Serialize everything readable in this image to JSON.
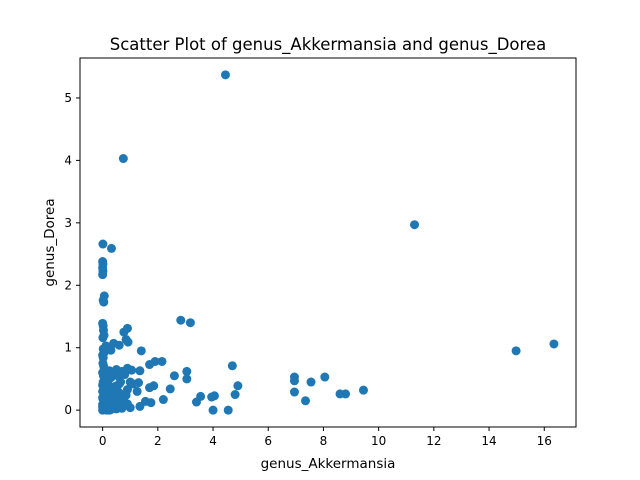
{
  "chart_data": {
    "type": "scatter",
    "title": "Scatter Plot of genus_Akkermansia and genus_Dorea",
    "xlabel": "genus_Akkermansia",
    "ylabel": "genus_Dorea",
    "xlim": [
      -0.82,
      17.15
    ],
    "ylim": [
      -0.27,
      5.64
    ],
    "xticks": [
      0,
      2,
      4,
      6,
      8,
      10,
      12,
      14,
      16
    ],
    "xtick_labels": [
      "0",
      "2",
      "4",
      "6",
      "8",
      "10",
      "12",
      "14",
      "16"
    ],
    "yticks": [
      0,
      1,
      2,
      3,
      4,
      5
    ],
    "ytick_labels": [
      "0",
      "1",
      "2",
      "3",
      "4",
      "5"
    ],
    "grid": false,
    "marker_color": "#1f77b4",
    "points": [
      [
        4.45,
        5.37
      ],
      [
        0.75,
        4.03
      ],
      [
        11.3,
        2.97
      ],
      [
        16.35,
        1.06
      ],
      [
        14.98,
        0.95
      ],
      [
        0.01,
        2.66
      ],
      [
        0.32,
        2.59
      ],
      [
        0.0,
        2.38
      ],
      [
        0.01,
        2.34
      ],
      [
        0.0,
        2.28
      ],
      [
        0.01,
        2.23
      ],
      [
        0.0,
        2.17
      ],
      [
        0.06,
        1.83
      ],
      [
        0.02,
        1.76
      ],
      [
        0.04,
        1.73
      ],
      [
        2.83,
        1.44
      ],
      [
        3.18,
        1.4
      ],
      [
        0.0,
        1.39
      ],
      [
        0.02,
        1.35
      ],
      [
        0.9,
        1.31
      ],
      [
        0.03,
        1.28
      ],
      [
        0.77,
        1.25
      ],
      [
        0.05,
        1.2
      ],
      [
        0.01,
        1.16
      ],
      [
        0.85,
        1.13
      ],
      [
        0.92,
        1.09
      ],
      [
        0.4,
        1.07
      ],
      [
        0.6,
        1.04
      ],
      [
        0.12,
        1.03
      ],
      [
        0.02,
        0.98
      ],
      [
        0.3,
        0.96
      ],
      [
        1.4,
        0.95
      ],
      [
        0.05,
        0.92
      ],
      [
        0.0,
        0.88
      ],
      [
        0.02,
        0.84
      ],
      [
        1.9,
        0.78
      ],
      [
        2.15,
        0.78
      ],
      [
        0.01,
        0.75
      ],
      [
        4.7,
        0.71
      ],
      [
        1.7,
        0.73
      ],
      [
        0.04,
        0.7
      ],
      [
        0.9,
        0.67
      ],
      [
        0.5,
        0.65
      ],
      [
        1.05,
        0.64
      ],
      [
        0.25,
        0.63
      ],
      [
        1.35,
        0.63
      ],
      [
        0.7,
        0.62
      ],
      [
        3.05,
        0.62
      ],
      [
        0.0,
        0.6
      ],
      [
        0.4,
        0.6
      ],
      [
        0.15,
        0.58
      ],
      [
        0.8,
        0.57
      ],
      [
        2.6,
        0.55
      ],
      [
        8.05,
        0.53
      ],
      [
        6.95,
        0.53
      ],
      [
        0.03,
        0.55
      ],
      [
        0.55,
        0.55
      ],
      [
        0.3,
        0.52
      ],
      [
        0.1,
        0.5
      ],
      [
        3.05,
        0.5
      ],
      [
        6.95,
        0.47
      ],
      [
        7.55,
        0.45
      ],
      [
        1.0,
        0.45
      ],
      [
        1.3,
        0.44
      ],
      [
        0.02,
        0.45
      ],
      [
        0.6,
        0.42
      ],
      [
        1.1,
        0.42
      ],
      [
        0.2,
        0.41
      ],
      [
        4.9,
        0.39
      ],
      [
        1.85,
        0.39
      ],
      [
        0.0,
        0.4
      ],
      [
        0.45,
        0.38
      ],
      [
        1.7,
        0.36
      ],
      [
        2.45,
        0.34
      ],
      [
        9.45,
        0.32
      ],
      [
        0.9,
        0.33
      ],
      [
        0.05,
        0.35
      ],
      [
        1.25,
        0.3
      ],
      [
        6.95,
        0.29
      ],
      [
        0.3,
        0.3
      ],
      [
        8.6,
        0.26
      ],
      [
        8.8,
        0.26
      ],
      [
        0.6,
        0.28
      ],
      [
        4.8,
        0.25
      ],
      [
        0.05,
        0.27
      ],
      [
        0.85,
        0.24
      ],
      [
        3.55,
        0.22
      ],
      [
        4.05,
        0.23
      ],
      [
        3.95,
        0.21
      ],
      [
        0.15,
        0.22
      ],
      [
        0.5,
        0.2
      ],
      [
        0.0,
        0.2
      ],
      [
        2.2,
        0.17
      ],
      [
        7.35,
        0.15
      ],
      [
        1.55,
        0.14
      ],
      [
        0.35,
        0.15
      ],
      [
        3.4,
        0.13
      ],
      [
        1.75,
        0.12
      ],
      [
        0.7,
        0.12
      ],
      [
        0.05,
        0.13
      ],
      [
        0.9,
        0.1
      ],
      [
        0.25,
        0.08
      ],
      [
        0.0,
        0.09
      ],
      [
        1.35,
        0.06
      ],
      [
        0.6,
        0.05
      ],
      [
        1.0,
        0.04
      ],
      [
        0.1,
        0.05
      ],
      [
        4.0,
        0.0
      ],
      [
        4.55,
        0.0
      ],
      [
        0.0,
        0.0
      ],
      [
        0.02,
        0.01
      ],
      [
        0.05,
        0.02
      ],
      [
        0.15,
        0.0
      ],
      [
        0.3,
        0.01
      ],
      [
        0.5,
        0.02
      ],
      [
        0.7,
        0.03
      ],
      [
        0.25,
        0.0
      ],
      [
        0.4,
        0.04
      ],
      [
        0.0,
        0.05
      ],
      [
        0.01,
        0.18
      ],
      [
        0.0,
        0.3
      ],
      [
        0.03,
        0.42
      ],
      [
        0.02,
        0.58
      ],
      [
        0.06,
        0.65
      ],
      [
        0.08,
        0.1
      ],
      [
        0.12,
        0.35
      ],
      [
        0.18,
        0.48
      ],
      [
        0.22,
        0.25
      ],
      [
        0.35,
        0.05
      ],
      [
        0.45,
        0.12
      ],
      [
        0.55,
        0.3
      ],
      [
        0.65,
        0.45
      ],
      [
        0.75,
        0.18
      ]
    ]
  }
}
